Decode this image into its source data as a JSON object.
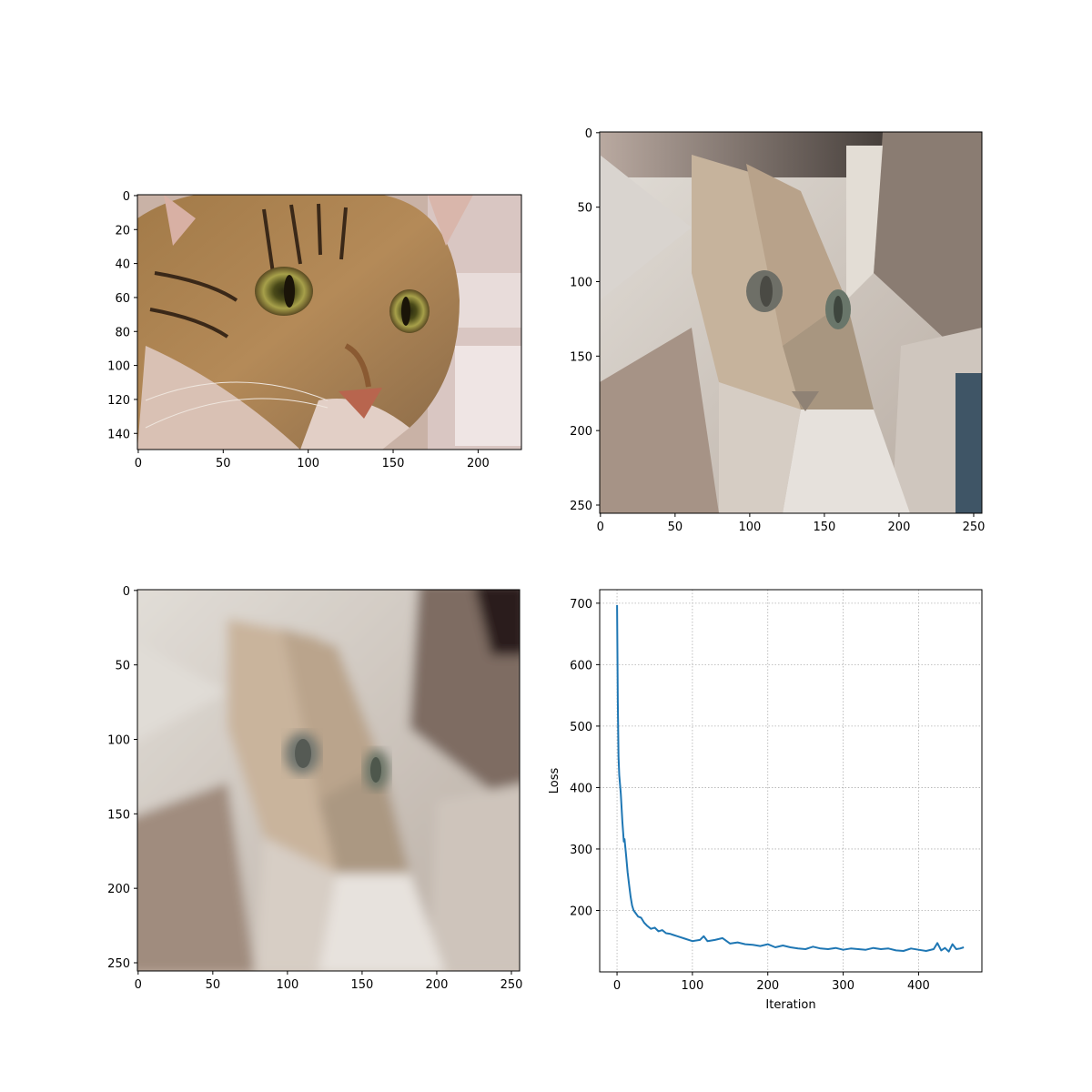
{
  "chart_data": [
    {
      "type": "image",
      "content": "tabby cat face photograph",
      "image_size": [
        226,
        150
      ],
      "xticks": [
        "0",
        "50",
        "100",
        "150",
        "200"
      ],
      "yticks": [
        "0",
        "20",
        "40",
        "60",
        "80",
        "100",
        "120",
        "140"
      ]
    },
    {
      "type": "image",
      "content": "polygon approximation of cat face, sharp",
      "image_size": [
        256,
        256
      ],
      "xticks": [
        "0",
        "50",
        "100",
        "150",
        "200",
        "250"
      ],
      "yticks": [
        "0",
        "50",
        "100",
        "150",
        "200",
        "250"
      ]
    },
    {
      "type": "image",
      "content": "polygon approximation of cat face, blurred",
      "image_size": [
        256,
        256
      ],
      "xticks": [
        "0",
        "50",
        "100",
        "150",
        "200",
        "250"
      ],
      "yticks": [
        "0",
        "50",
        "100",
        "150",
        "200",
        "250"
      ]
    },
    {
      "type": "line",
      "xlabel": "Iteration",
      "ylabel": "Loss",
      "xlim": [
        -23,
        484
      ],
      "ylim": [
        100,
        722
      ],
      "xticks": [
        "0",
        "100",
        "200",
        "300",
        "400"
      ],
      "yticks": [
        "200",
        "300",
        "400",
        "500",
        "600",
        "700"
      ],
      "grid": true,
      "series_color": "#1f77b4",
      "series": [
        {
          "x": [
            0,
            1,
            2,
            3,
            5,
            7,
            9,
            10,
            12,
            14,
            16,
            18,
            20,
            22,
            25,
            28,
            32,
            36,
            40,
            45,
            50,
            55,
            60,
            65,
            70,
            75,
            80,
            90,
            100,
            110,
            115,
            120,
            130,
            140,
            150,
            160,
            170,
            180,
            190,
            200,
            210,
            220,
            230,
            240,
            250,
            260,
            270,
            280,
            290,
            300,
            310,
            320,
            330,
            340,
            350,
            360,
            370,
            380,
            390,
            400,
            410,
            420,
            425,
            430,
            435,
            440,
            445,
            450,
            455,
            460
          ],
          "y": [
            697,
            540,
            450,
            420,
            390,
            345,
            312,
            316,
            290,
            262,
            242,
            222,
            208,
            200,
            195,
            190,
            188,
            180,
            175,
            170,
            172,
            166,
            168,
            163,
            162,
            160,
            158,
            154,
            150,
            152,
            158,
            150,
            152,
            155,
            146,
            148,
            145,
            144,
            142,
            145,
            140,
            143,
            140,
            138,
            137,
            141,
            138,
            137,
            139,
            136,
            138,
            137,
            136,
            139,
            137,
            138,
            135,
            134,
            138,
            136,
            134,
            137,
            147,
            135,
            139,
            133,
            145,
            137,
            138,
            140
          ]
        }
      ]
    }
  ]
}
